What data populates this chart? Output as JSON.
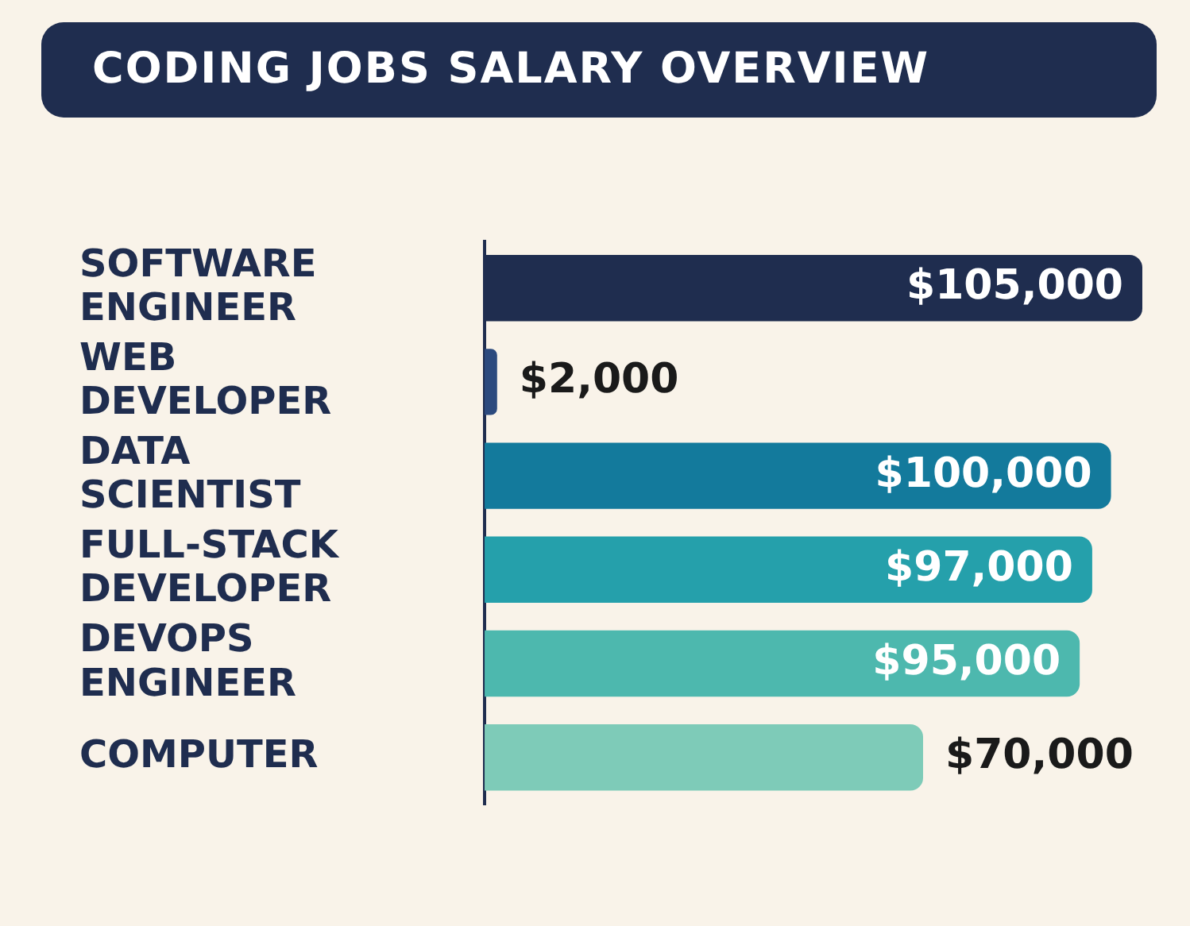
{
  "chart_data": {
    "type": "bar",
    "orientation": "horizontal",
    "title": "CODING JOBS SALARY OVERVIEW",
    "categories": [
      "SOFTWARE ENGINEER",
      "WEB DEVELOPER",
      "DATA SCIENTIST",
      "FULL-STACK DEVELOPER",
      "DEVOPS ENGINEER",
      "COMPUTER"
    ],
    "values": [
      105000,
      2000,
      100000,
      97000,
      95000,
      70000
    ],
    "colors": [
      "#1f2d4f",
      "#2c4a7e",
      "#137a9c",
      "#25a0ab",
      "#4db8ae",
      "#7ecbb8"
    ],
    "value_labels": [
      "$105,000",
      "$2,000",
      "$100,000",
      "$97,000",
      "$95,000",
      "$70,000"
    ],
    "legend": false
  }
}
